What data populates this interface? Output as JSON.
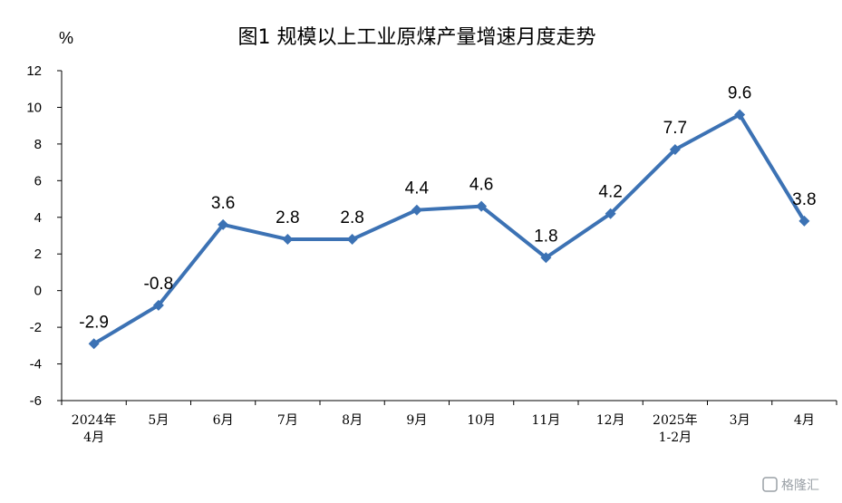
{
  "chart_data": {
    "type": "line",
    "title": "图1  规模以上工业原煤产量增速月度走势",
    "ylabel": "%",
    "ylim": [
      -6,
      12
    ],
    "ytick_step": 2,
    "categories": [
      [
        "2024年",
        "4月"
      ],
      [
        "5月"
      ],
      [
        "6月"
      ],
      [
        "7月"
      ],
      [
        "8月"
      ],
      [
        "9月"
      ],
      [
        "10月"
      ],
      [
        "11月"
      ],
      [
        "12月"
      ],
      [
        "2025年",
        "1-2月"
      ],
      [
        "3月"
      ],
      [
        "4月"
      ]
    ],
    "values": [
      -2.9,
      -0.8,
      3.6,
      2.8,
      2.8,
      4.4,
      4.6,
      1.8,
      4.2,
      7.7,
      9.6,
      3.8
    ],
    "data_labels": [
      "-2.9",
      "-0.8",
      "3.6",
      "2.8",
      "2.8",
      "4.4",
      "4.6",
      "1.8",
      "4.2",
      "7.7",
      "9.6",
      "3.8"
    ],
    "line_color": "#3c72b4",
    "marker": "diamond",
    "grid": false,
    "legend": "none"
  },
  "watermark": {
    "text": "格隆汇"
  }
}
